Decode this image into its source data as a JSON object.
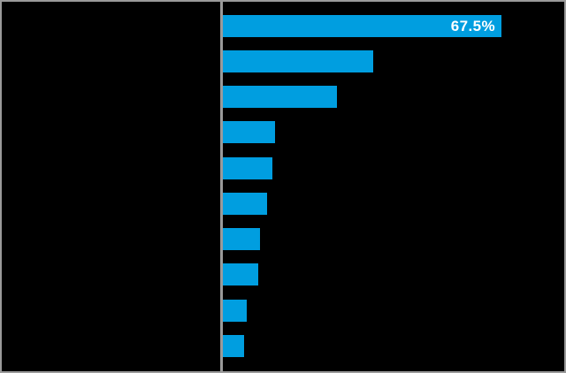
{
  "chart_data": {
    "type": "bar",
    "orientation": "horizontal",
    "title": "",
    "xlabel": "",
    "ylabel": "",
    "unit": "%",
    "categories": [
      "",
      "",
      "",
      "",
      "",
      "",
      "",
      "",
      "",
      ""
    ],
    "values": [
      67.5,
      36.4,
      27.6,
      12.6,
      12.0,
      10.7,
      9.0,
      8.6,
      5.8,
      5.1
    ],
    "data_labels": [
      "67.5%",
      "",
      "",
      "",
      "",
      "",
      "",
      "",
      "",
      ""
    ],
    "xlim": [
      0,
      82.7
    ],
    "grid": false,
    "legend": false,
    "bar_color": "#009ee0",
    "data_label_color": "#ffffff",
    "background_color": "#000000",
    "axis_line_color": "#9a9a9a",
    "border_color": "#9a9a9a"
  }
}
